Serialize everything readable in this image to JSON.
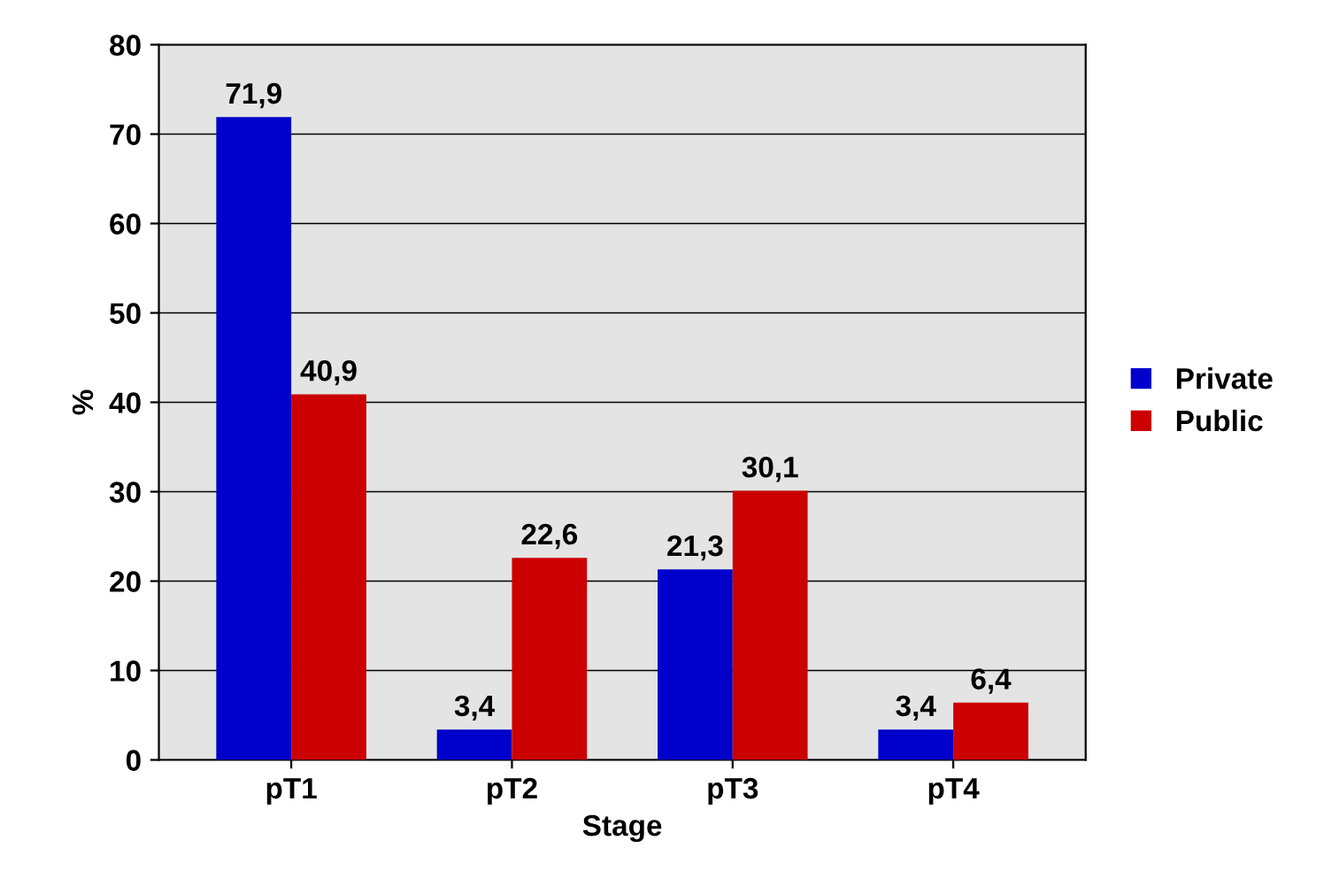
{
  "chart_data": {
    "type": "bar",
    "xlabel": "Stage",
    "ylabel": "%",
    "categories": [
      "pT1",
      "pT2",
      "pT3",
      "pT4"
    ],
    "series": [
      {
        "name": "Private",
        "color": "#0000cc",
        "values": [
          71.9,
          3.4,
          21.3,
          3.4
        ],
        "value_labels": [
          "71,9",
          "3,4",
          "21,3",
          "3,4"
        ]
      },
      {
        "name": "Public",
        "color": "#cc0000",
        "values": [
          40.9,
          22.6,
          30.1,
          6.4
        ],
        "value_labels": [
          "40,9",
          "22,6",
          "30,1",
          "6,4"
        ]
      }
    ],
    "ylim": [
      0,
      80
    ],
    "yticks": [
      0,
      10,
      20,
      30,
      40,
      50,
      60,
      70,
      80
    ],
    "grid": "y",
    "legend": "right"
  }
}
